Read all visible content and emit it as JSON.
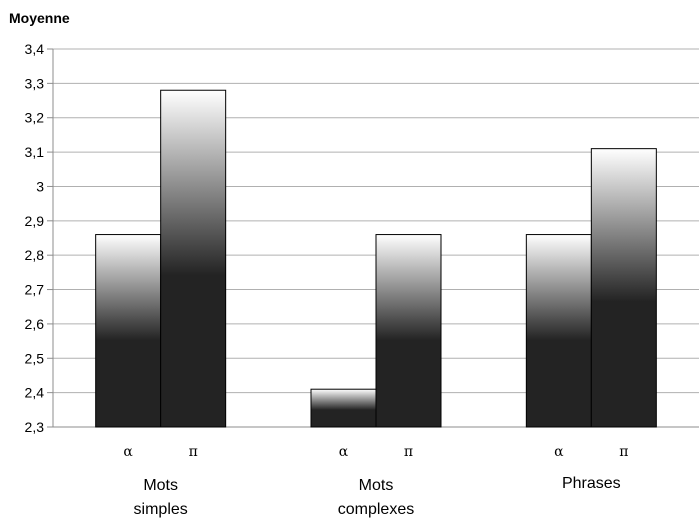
{
  "chart_data": {
    "type": "bar",
    "title": "",
    "ylabel": "Moyenne",
    "xlabel": "",
    "ylim": [
      2.3,
      3.4
    ],
    "yticks": [
      "2,3",
      "2,4",
      "2,5",
      "2,6",
      "2,7",
      "2,8",
      "2,9",
      "3",
      "3,1",
      "3,2",
      "3,3",
      "3,4"
    ],
    "grid": true,
    "legend": "none",
    "categories": [
      {
        "lines": [
          "Mots",
          "simples"
        ],
        "bars": [
          {
            "label": "α",
            "value": 2.86
          },
          {
            "label": "π",
            "value": 3.28
          }
        ]
      },
      {
        "lines": [
          "Mots",
          "complexes"
        ],
        "bars": [
          {
            "label": "α",
            "value": 2.41
          },
          {
            "label": "π",
            "value": 2.86
          }
        ]
      },
      {
        "lines": [
          "Phrases"
        ],
        "bars": [
          {
            "label": "α",
            "value": 2.86
          },
          {
            "label": "π",
            "value": 3.11
          }
        ]
      }
    ],
    "colors": {
      "bar_dark": "#232323",
      "bar_light": "#ffffff",
      "grid": "#b0b0b0",
      "axis": "#8c8c8c"
    }
  }
}
